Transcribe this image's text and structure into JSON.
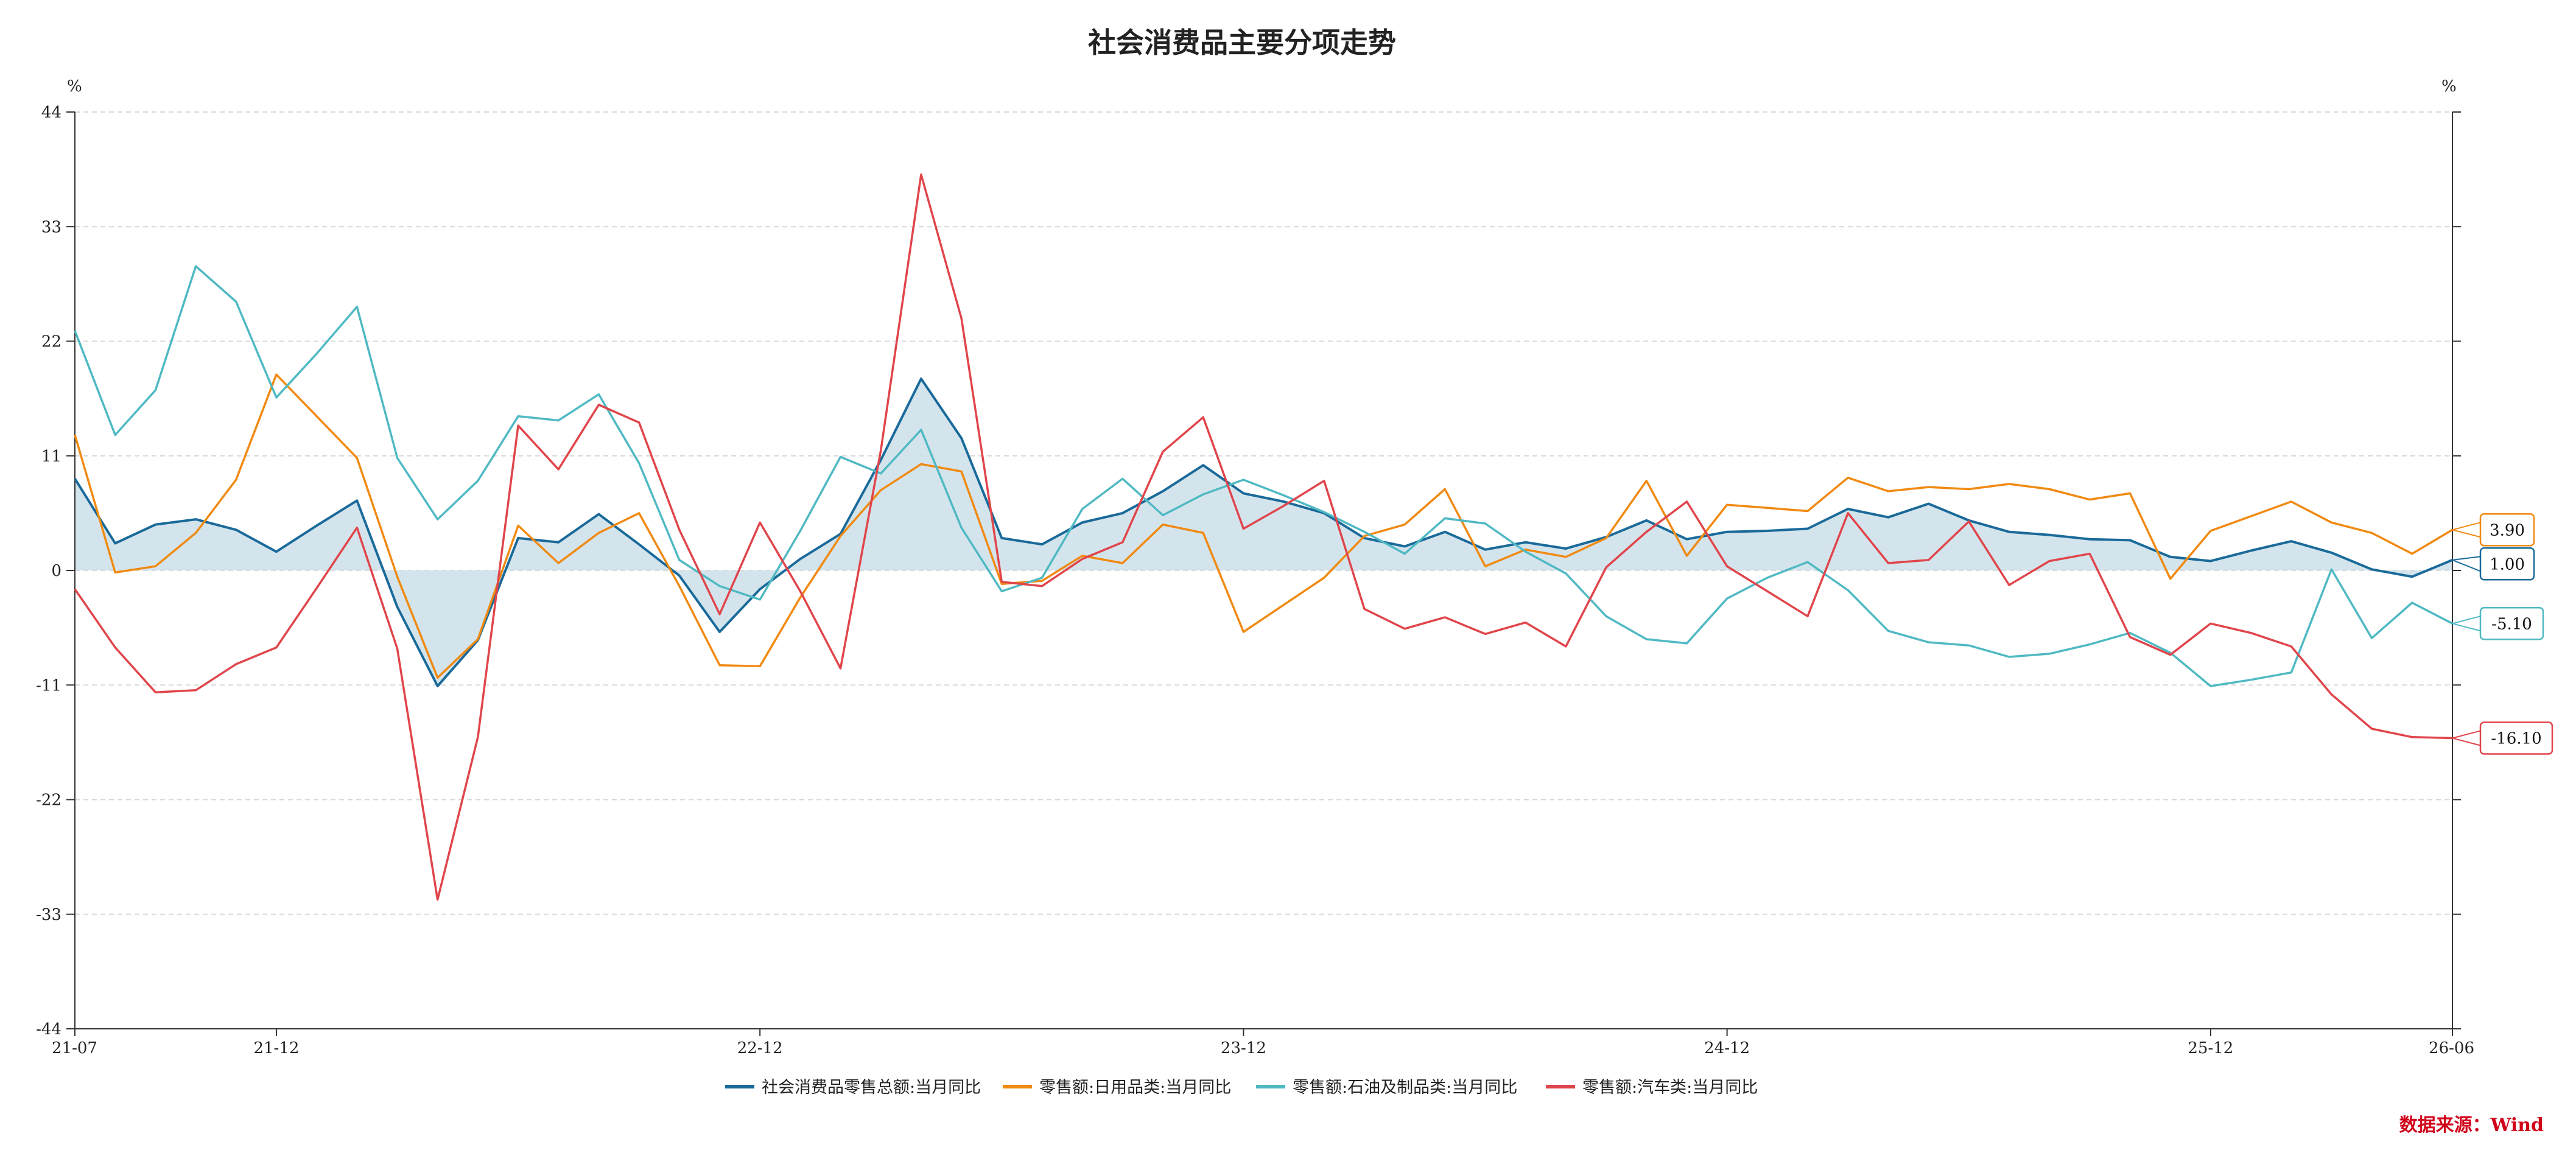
{
  "chart_data": {
    "type": "line",
    "title": "社会消费品主要分项走势",
    "y_unit_left": "%",
    "y_unit_right": "%",
    "ylim": [
      -44,
      44
    ],
    "yticks": [
      44,
      33,
      22,
      11,
      0,
      -11,
      -22,
      -33,
      -44
    ],
    "x": [
      "21-07",
      "21-08",
      "21-09",
      "21-10",
      "21-11",
      "21-12",
      "22-01",
      "22-02",
      "22-03",
      "22-04",
      "22-05",
      "22-06",
      "22-07",
      "22-08",
      "22-09",
      "22-10",
      "22-11",
      "22-12",
      "23-01",
      "23-02",
      "23-03",
      "23-04",
      "23-05",
      "23-06",
      "23-07",
      "23-08",
      "23-09",
      "23-10",
      "23-11",
      "23-12",
      "24-01",
      "24-02",
      "24-03",
      "24-04",
      "24-05",
      "24-06",
      "24-07",
      "24-08",
      "24-09",
      "24-10",
      "24-11",
      "24-12",
      "25-01",
      "25-02",
      "25-03",
      "25-04",
      "25-05",
      "25-06",
      "25-07",
      "25-08",
      "25-09",
      "25-10",
      "25-11",
      "25-12",
      "26-01",
      "26-02",
      "26-03",
      "26-04",
      "26-05",
      "26-06"
    ],
    "xtick_labels": [
      "21-07",
      "21-12",
      "22-12",
      "23-12",
      "24-12",
      "25-12",
      "26-06"
    ],
    "grid": "horizontal-dashed",
    "legend_position": "bottom",
    "series": [
      {
        "name": "社会消费品零售总额:当月同比",
        "color": "#1a6a9a",
        "fill": "#cfe1ea",
        "values": [
          8.8,
          2.6,
          4.4,
          4.9,
          3.9,
          1.8,
          4.3,
          6.7,
          -3.5,
          -11.1,
          -6.7,
          3.1,
          2.7,
          5.4,
          2.5,
          -0.5,
          -5.9,
          -1.8,
          1.1,
          3.5,
          10.6,
          18.4,
          12.7,
          3.1,
          2.5,
          4.6,
          5.5,
          7.6,
          10.1,
          7.4,
          6.6,
          5.5,
          3.1,
          2.3,
          3.7,
          2.0,
          2.7,
          2.1,
          3.2,
          4.8,
          3.0,
          3.7,
          3.8,
          4.0,
          5.9,
          5.1,
          6.4,
          4.8,
          3.7,
          3.4,
          3.0,
          2.9,
          1.3,
          0.9,
          1.9,
          2.8,
          1.7,
          0.1,
          -0.6,
          1.0
        ],
        "end_label": "1.00"
      },
      {
        "name": "零售额:日用品类:当月同比",
        "color": "#f08a12",
        "values": [
          13.0,
          -0.2,
          0.4,
          3.6,
          8.7,
          18.8,
          14.8,
          10.8,
          -0.6,
          -10.3,
          -6.6,
          4.3,
          0.7,
          3.6,
          5.5,
          -1.5,
          -9.1,
          -9.2,
          -2.6,
          3.3,
          7.7,
          10.2,
          9.5,
          -1.3,
          -1.0,
          1.4,
          0.7,
          4.4,
          3.6,
          -5.9,
          -3.3,
          -0.7,
          3.3,
          4.4,
          7.8,
          0.4,
          2.0,
          1.3,
          3.1,
          8.6,
          1.4,
          6.3,
          6.0,
          5.7,
          8.9,
          7.6,
          8.0,
          7.8,
          8.3,
          7.8,
          6.8,
          7.4,
          -0.8,
          3.8,
          5.2,
          6.6,
          4.6,
          3.6,
          1.6,
          3.9
        ],
        "end_label": "3.90"
      },
      {
        "name": "零售额:石油及制品类:当月同比",
        "color": "#4fb9c3",
        "values": [
          23.0,
          13.0,
          17.3,
          29.2,
          25.8,
          16.6,
          20.8,
          25.3,
          10.8,
          4.9,
          8.6,
          14.8,
          14.4,
          16.9,
          10.3,
          1.0,
          -1.5,
          -2.8,
          3.8,
          10.9,
          9.3,
          13.5,
          4.1,
          -2.0,
          -0.7,
          5.9,
          8.8,
          5.3,
          7.3,
          8.7,
          7.2,
          5.6,
          3.7,
          1.6,
          5.0,
          4.5,
          1.8,
          -0.3,
          -4.4,
          -6.6,
          -7.0,
          -2.7,
          -0.7,
          0.8,
          -1.9,
          -5.8,
          -6.9,
          -7.2,
          -8.3,
          -8.0,
          -7.1,
          -6.0,
          -7.9,
          -11.1,
          -10.5,
          -9.8,
          0.1,
          -6.5,
          -3.1,
          -5.1
        ],
        "end_label": "-5.10"
      },
      {
        "name": "零售额:汽车类:当月同比",
        "color": "#e0454b",
        "values": [
          -1.8,
          -7.4,
          -11.7,
          -11.5,
          -9.0,
          -7.4,
          -1.7,
          4.1,
          -7.5,
          -31.6,
          -16.0,
          13.9,
          9.7,
          15.9,
          14.2,
          3.9,
          -4.2,
          4.6,
          -2.0,
          -9.4,
          11.5,
          38.0,
          24.2,
          -1.1,
          -1.5,
          1.1,
          2.7,
          11.4,
          14.7,
          4.0,
          6.2,
          8.6,
          -3.7,
          -5.6,
          -4.5,
          -6.1,
          -5.0,
          -7.3,
          0.3,
          3.7,
          6.6,
          0.4,
          -2.0,
          -4.4,
          5.5,
          0.7,
          1.0,
          4.7,
          -1.4,
          0.9,
          1.6,
          -6.4,
          -8.1,
          -5.1,
          -6.0,
          -7.3,
          -11.9,
          -15.2,
          -16.0,
          -16.1
        ],
        "end_label": "-16.10"
      }
    ]
  },
  "source_label": "数据来源：Wind"
}
